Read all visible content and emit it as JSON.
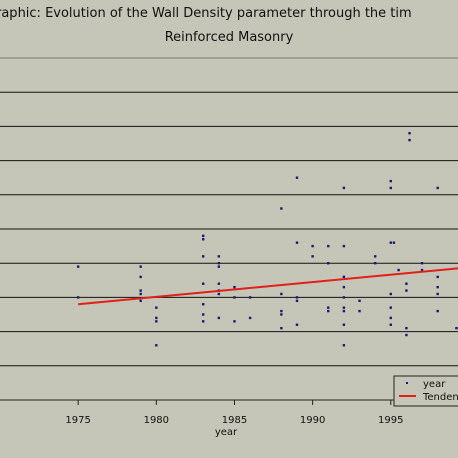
{
  "chart_data": {
    "type": "scatter",
    "title_line1": "raphic: Evolution of the Wall Density parameter through the tim",
    "title_line2": "Reinforced Masonry",
    "xlabel": "year",
    "ylabel": "",
    "xlim": [
      1970,
      1999.3
    ],
    "ylim": [
      0,
      10
    ],
    "x_ticks": [
      "1975",
      "1980",
      "1985",
      "1990",
      "1995"
    ],
    "x_tick_values": [
      1975,
      1980,
      1985,
      1990,
      1995
    ],
    "grid": true,
    "legend_position": "bottom-right",
    "legend": [
      {
        "label": "year",
        "marker": "point",
        "color": "#1a1a6e"
      },
      {
        "label": "Tenden",
        "marker": "line",
        "color": "#e0201a"
      }
    ],
    "series": [
      {
        "name": "year",
        "color": "#1a1a6e",
        "points": [
          [
            1975,
            3.9
          ],
          [
            1975,
            3.0
          ],
          [
            1979,
            3.9
          ],
          [
            1979,
            3.6
          ],
          [
            1979,
            3.2
          ],
          [
            1979,
            3.1
          ],
          [
            1979,
            2.9
          ],
          [
            1980,
            2.7
          ],
          [
            1980,
            2.4
          ],
          [
            1980,
            2.3
          ],
          [
            1980,
            1.6
          ],
          [
            1983,
            4.8
          ],
          [
            1983,
            4.7
          ],
          [
            1983,
            4.2
          ],
          [
            1983,
            3.4
          ],
          [
            1983,
            2.8
          ],
          [
            1983,
            2.5
          ],
          [
            1983,
            2.3
          ],
          [
            1984,
            4.2
          ],
          [
            1984,
            4.0
          ],
          [
            1984,
            3.9
          ],
          [
            1984,
            3.4
          ],
          [
            1984,
            3.2
          ],
          [
            1984,
            3.1
          ],
          [
            1984,
            2.4
          ],
          [
            1985,
            3.3
          ],
          [
            1985,
            3.0
          ],
          [
            1985,
            2.3
          ],
          [
            1986,
            3.0
          ],
          [
            1986,
            2.4
          ],
          [
            1988,
            5.6
          ],
          [
            1988,
            3.1
          ],
          [
            1988,
            2.6
          ],
          [
            1988,
            2.5
          ],
          [
            1988,
            2.1
          ],
          [
            1989,
            6.5
          ],
          [
            1989,
            4.6
          ],
          [
            1989,
            3.0
          ],
          [
            1989,
            2.9
          ],
          [
            1989,
            2.2
          ],
          [
            1990,
            4.5
          ],
          [
            1990,
            4.2
          ],
          [
            1991,
            4.5
          ],
          [
            1991,
            4.0
          ],
          [
            1991,
            2.6
          ],
          [
            1991,
            2.7
          ],
          [
            1992,
            6.2
          ],
          [
            1992,
            4.5
          ],
          [
            1992,
            3.6
          ],
          [
            1992,
            3.3
          ],
          [
            1992,
            3.0
          ],
          [
            1992,
            2.7
          ],
          [
            1992,
            2.6
          ],
          [
            1992,
            2.2
          ],
          [
            1992,
            1.6
          ],
          [
            1993,
            2.9
          ],
          [
            1993,
            2.6
          ],
          [
            1994,
            4.2
          ],
          [
            1994,
            4.0
          ],
          [
            1995,
            6.4
          ],
          [
            1995,
            6.2
          ],
          [
            1995,
            4.6
          ],
          [
            1995,
            3.1
          ],
          [
            1995,
            2.7
          ],
          [
            1995,
            2.4
          ],
          [
            1995,
            2.2
          ],
          [
            1995.2,
            4.6
          ],
          [
            1995.5,
            3.8
          ],
          [
            1996,
            3.4
          ],
          [
            1996,
            3.2
          ],
          [
            1996,
            2.1
          ],
          [
            1996,
            1.9
          ],
          [
            1996.2,
            7.8
          ],
          [
            1996.2,
            7.6
          ],
          [
            1997,
            4.0
          ],
          [
            1997,
            3.8
          ],
          [
            1998,
            6.2
          ],
          [
            1998,
            3.6
          ],
          [
            1998,
            3.3
          ],
          [
            1998,
            3.1
          ],
          [
            1998,
            2.6
          ],
          [
            1999.2,
            2.1
          ]
        ]
      }
    ],
    "trendline": {
      "name": "Tenden",
      "color": "#e0201a",
      "x": [
        1975,
        1999.3
      ],
      "y": [
        2.8,
        3.85
      ]
    }
  }
}
